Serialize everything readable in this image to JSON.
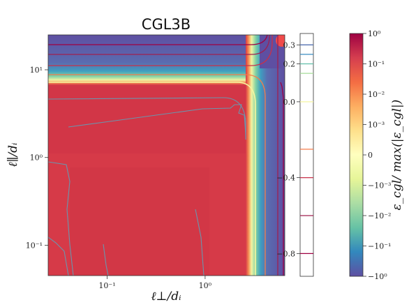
{
  "chart_data": {
    "type": "heatmap",
    "title": "CGL3B",
    "xlabel": "ℓ⊥/dᵢ",
    "ylabel": "ℓ∥/dᵢ",
    "x_scale": "log",
    "y_scale": "log",
    "xlim": [
      0.025,
      6.5
    ],
    "ylim": [
      0.045,
      25
    ],
    "x_ticks": [
      {
        "value": 0.1,
        "label": "10⁻¹"
      },
      {
        "value": 1,
        "label": "10⁰"
      }
    ],
    "y_ticks": [
      {
        "value": 0.1,
        "label": "10⁻¹"
      },
      {
        "value": 1,
        "label": "10⁰"
      },
      {
        "value": 10,
        "label": "10¹"
      }
    ],
    "regions": [
      {
        "name": "bulk",
        "color": "#d63a48"
      },
      {
        "name": "top band",
        "color": "#5e4fa2"
      },
      {
        "name": "right band",
        "color": "#5e4fa2"
      },
      {
        "name": "transition",
        "color": "#ffffbf"
      }
    ],
    "contour_levels": [
      {
        "value": 0.3,
        "color": "#5470b0"
      },
      {
        "value": 0.25,
        "color": "#3a8cc0"
      },
      {
        "value": 0.2,
        "color": "#5fbea8"
      },
      {
        "value": 0.15,
        "color": "#a6dc9a"
      },
      {
        "value": 0.0,
        "color": "#f6f6a0"
      },
      {
        "value": -0.25,
        "color": "#f47c4a"
      },
      {
        "value": -0.4,
        "color": "#c8304a"
      },
      {
        "value": -0.6,
        "color": "#a02050"
      },
      {
        "value": -0.8,
        "color": "#9e0142"
      }
    ],
    "contour_colorbar": {
      "ticks": [
        {
          "value": 0.3,
          "label": "0.3"
        },
        {
          "value": 0.2,
          "label": "0.2"
        },
        {
          "value": 0.0,
          "label": "0.0"
        },
        {
          "value": -0.4,
          "label": "−0.4"
        },
        {
          "value": -0.8,
          "label": "−0.8"
        }
      ]
    },
    "colorbar": {
      "label": "ε_cgl/ max(|ε_cgl|)",
      "scale": "symlog",
      "ticks": [
        {
          "value": 1,
          "label": "10⁰"
        },
        {
          "value": 0.1,
          "label": "10⁻¹"
        },
        {
          "value": 0.01,
          "label": "10⁻²"
        },
        {
          "value": 0.001,
          "label": "10⁻³"
        },
        {
          "value": 0,
          "label": "0"
        },
        {
          "value": -0.001,
          "label": "−10⁻³"
        },
        {
          "value": -0.01,
          "label": "−10⁻²"
        },
        {
          "value": -0.1,
          "label": "−10⁻¹"
        },
        {
          "value": -1,
          "label": "−10⁰"
        }
      ],
      "colors": [
        "#9e0142",
        "#d53e4f",
        "#f46d43",
        "#fdae61",
        "#fee08b",
        "#ffffbf",
        "#e6f598",
        "#abdda4",
        "#66c2a5",
        "#3288bd",
        "#5e4fa2"
      ]
    }
  }
}
